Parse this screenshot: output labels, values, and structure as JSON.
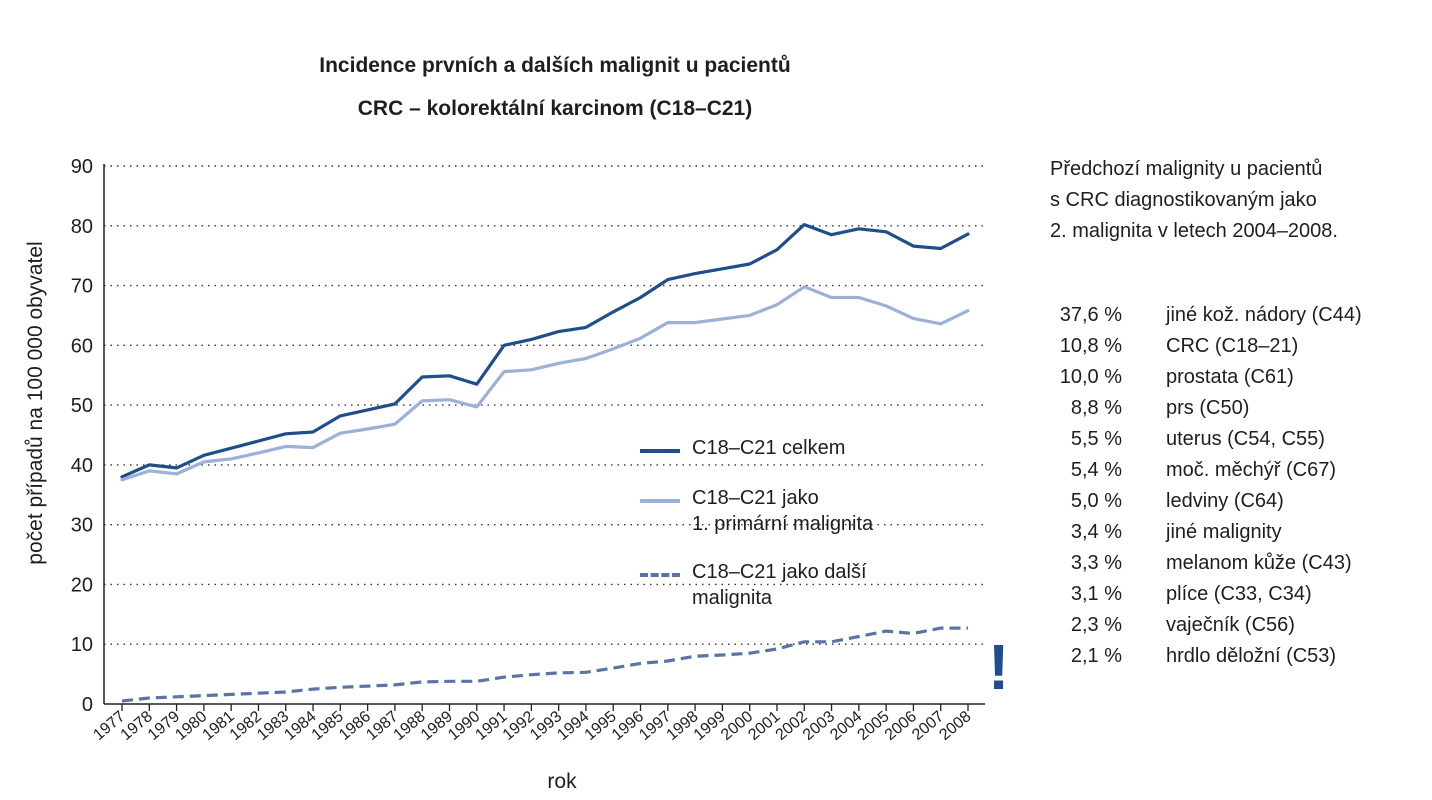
{
  "chart_data": {
    "type": "line",
    "title": "Incidence prvních a dalších malignit u pacientů",
    "subtitle": "CRC – kolorektální karcinom (C18–C21)",
    "xlabel": "rok",
    "ylabel": "počet případů na 100 000 obyvatel",
    "ylim": [
      0,
      90
    ],
    "yticks": [
      0,
      10,
      20,
      30,
      40,
      50,
      60,
      70,
      80,
      90
    ],
    "grid": "horizontal dotted",
    "x": [
      "1977",
      "1978",
      "1979",
      "1980",
      "1981",
      "1982",
      "1983",
      "1984",
      "1985",
      "1986",
      "1987",
      "1988",
      "1989",
      "1990",
      "1991",
      "1992",
      "1993",
      "1994",
      "1995",
      "1996",
      "1997",
      "1998",
      "1999",
      "2000",
      "2001",
      "2002",
      "2003",
      "2004",
      "2005",
      "2006",
      "2007",
      "2008"
    ],
    "series": [
      {
        "name": "C18–C21 celkem",
        "color": "#1f4e8c",
        "style": "solid",
        "values": [
          38.0,
          40.0,
          39.5,
          41.6,
          42.8,
          44.0,
          45.2,
          45.5,
          48.2,
          49.2,
          50.2,
          54.7,
          54.9,
          53.5,
          60.0,
          61.0,
          62.3,
          63.0,
          65.6,
          68.0,
          71.0,
          72.0,
          72.8,
          73.6,
          76.0,
          80.2,
          78.5,
          79.5,
          79.0,
          76.6,
          76.2,
          78.6
        ]
      },
      {
        "name": "C18–C21 jako\n1. primární malignita",
        "color": "#9bb1d8",
        "style": "solid",
        "values": [
          37.5,
          39.0,
          38.5,
          40.5,
          41.0,
          42.0,
          43.1,
          42.9,
          45.3,
          46.0,
          46.8,
          50.7,
          50.9,
          49.7,
          55.6,
          55.9,
          57.0,
          57.8,
          59.4,
          61.2,
          63.8,
          63.8,
          64.4,
          65.0,
          66.8,
          69.8,
          68.0,
          68.0,
          66.6,
          64.5,
          63.6,
          65.8
        ]
      },
      {
        "name": "C18–C21 jako další\nmalignita",
        "color": "#5a74a6",
        "style": "dashed",
        "values": [
          0.5,
          1.0,
          1.2,
          1.4,
          1.6,
          1.8,
          2.0,
          2.5,
          2.8,
          3.0,
          3.2,
          3.7,
          3.8,
          3.8,
          4.5,
          4.9,
          5.2,
          5.3,
          6.0,
          6.8,
          7.2,
          8.0,
          8.2,
          8.5,
          9.2,
          10.4,
          10.4,
          11.3,
          12.2,
          11.8,
          12.7,
          12.7
        ]
      }
    ],
    "legend_position": "center"
  },
  "side_panel": {
    "heading": "Předchozí malignity u pacientů\ns CRC diagnostikovaným jako\n2. malignita v letech 2004–2008.",
    "items": [
      {
        "pct": "37,6 %",
        "name": "jiné kož. nádory (C44)"
      },
      {
        "pct": "10,8 %",
        "name": "CRC (C18–21)"
      },
      {
        "pct": "10,0 %",
        "name": "prostata (C61)"
      },
      {
        "pct": "8,8 %",
        "name": "prs (C50)"
      },
      {
        "pct": "5,5 %",
        "name": "uterus (C54, C55)"
      },
      {
        "pct": "5,4 %",
        "name": "moč. měchýř (C67)"
      },
      {
        "pct": "5,0 %",
        "name": "ledviny (C64)"
      },
      {
        "pct": "3,4 %",
        "name": "jiné malignity"
      },
      {
        "pct": "3,3 %",
        "name": "melanom kůže (C43)"
      },
      {
        "pct": "3,1 %",
        "name": "plíce (C33, C34)"
      },
      {
        "pct": "2,3 %",
        "name": "vaječník (C56)"
      },
      {
        "pct": "2,1 %",
        "name": "hrdlo děložní (C53)"
      }
    ]
  },
  "warning_icon": "exclamation-icon"
}
